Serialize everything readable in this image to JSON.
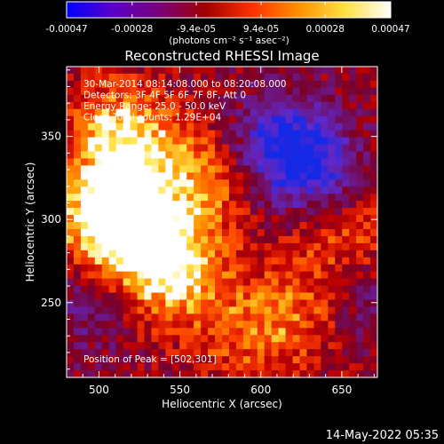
{
  "colorbar": {
    "tick_labels": [
      "-0.00047",
      "-0.00028",
      "-9.4e-05",
      "9.4e-05",
      "0.00028",
      "0.00047"
    ],
    "tick_values": [
      -0.00047,
      -0.00028,
      -9.4e-05,
      9.4e-05,
      0.00028,
      0.00047
    ],
    "range": [
      -0.00047,
      0.00047
    ],
    "units_label": "(photons cm⁻² s⁻¹ asec⁻²)",
    "stops": [
      "#0000ff",
      "#5a00c8",
      "#7a007a",
      "#a00000",
      "#ff3000",
      "#ff9000",
      "#ffe040",
      "#ffffff"
    ]
  },
  "chart_data": {
    "type": "heatmap",
    "title": "Reconstructed RHESSI Image",
    "xlabel": "Heliocentric X (arcsec)",
    "ylabel": "Heliocentric Y (arcsec)",
    "xlim": [
      480,
      672
    ],
    "ylim": [
      205,
      392
    ],
    "xticks": [
      500,
      550,
      600,
      650
    ],
    "yticks": [
      250,
      300,
      350
    ],
    "annotations": [
      "30-Mar-2014 08:14:08.000 to 08:20:08.000",
      "Detectors: 3F 4F 5F 6F 7F 8F, Att 0",
      "Energy Range: 25.0 - 50.0 keV",
      "Clean     Total counts: 1.29E+04"
    ],
    "peak_label": "Position of Peak = [502,301]",
    "peak": [
      502,
      301
    ],
    "hot_regions": [
      {
        "x": 502,
        "y": 301,
        "strength": 1.0
      },
      {
        "x": 520,
        "y": 340,
        "strength": 0.8
      },
      {
        "x": 548,
        "y": 268,
        "strength": 0.85
      },
      {
        "x": 530,
        "y": 290,
        "strength": 0.7
      },
      {
        "x": 565,
        "y": 325,
        "strength": 0.55
      },
      {
        "x": 628,
        "y": 245,
        "strength": 0.55
      },
      {
        "x": 650,
        "y": 290,
        "strength": 0.45
      },
      {
        "x": 590,
        "y": 230,
        "strength": 0.45
      },
      {
        "x": 505,
        "y": 360,
        "strength": 0.35
      }
    ],
    "cold_regions": [
      {
        "x": 612,
        "y": 345,
        "strength": 0.9
      },
      {
        "x": 635,
        "y": 330,
        "strength": 0.7
      },
      {
        "x": 655,
        "y": 250,
        "strength": 0.4
      },
      {
        "x": 490,
        "y": 245,
        "strength": 0.3
      }
    ]
  },
  "timestamp": "14-May-2022 05:35"
}
